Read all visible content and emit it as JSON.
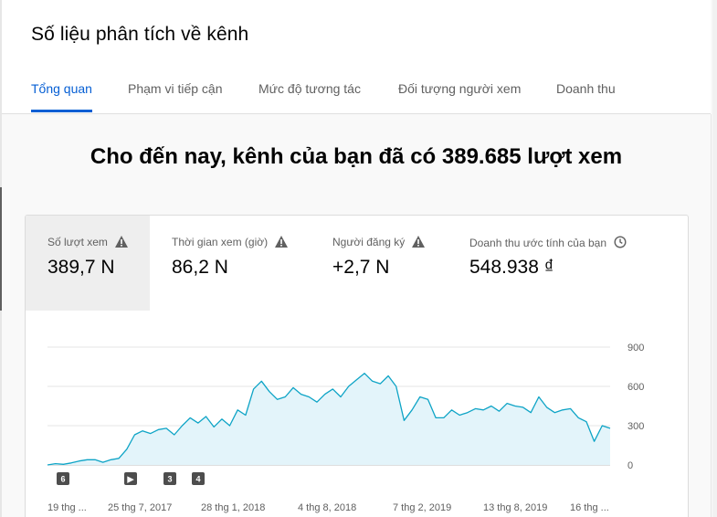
{
  "page": {
    "title": "Số liệu phân tích về kênh",
    "tabs": [
      {
        "label": "Tổng quan",
        "active": true
      },
      {
        "label": "Phạm vi tiếp cận",
        "active": false
      },
      {
        "label": "Mức độ tương tác",
        "active": false
      },
      {
        "label": "Đối tượng người xem",
        "active": false
      },
      {
        "label": "Doanh thu",
        "active": false
      }
    ],
    "headline": "Cho đến nay, kênh của bạn đã có 389.685 lượt xem"
  },
  "metrics": [
    {
      "label": "Số lượt xem",
      "value": "389,7 N",
      "icon": "warning-icon",
      "selected": true
    },
    {
      "label": "Thời gian xem (giờ)",
      "value": "86,2 N",
      "icon": "warning-icon",
      "selected": false
    },
    {
      "label": "Người đăng ký",
      "value": "+2,7 N",
      "icon": "warning-icon",
      "selected": false
    },
    {
      "label": "Doanh thu ước tính của bạn",
      "value": "548.938 ₫",
      "icon": "clock-icon",
      "selected": false
    }
  ],
  "colors": {
    "accent": "#065fd4",
    "line": "#0ea4c6",
    "area": "#e3f4fa",
    "grid": "#e5e5e5",
    "warning": "#606060"
  },
  "chart_data": {
    "type": "line",
    "ylim": [
      0,
      900
    ],
    "yticks": [
      "900",
      "600",
      "300",
      "0"
    ],
    "xticks": [
      "19 thg ...",
      "25 thg 7, 2017",
      "28 thg 1, 2018",
      "4 thg 8, 2018",
      "7 thg 2, 2019",
      "13 thg 8, 2019",
      "16 thg ..."
    ],
    "markers": [
      "6",
      "▶",
      "3",
      "4"
    ],
    "series": [
      {
        "values": [
          0,
          10,
          5,
          15,
          30,
          40,
          40,
          20,
          40,
          50,
          120,
          230,
          260,
          240,
          270,
          280,
          230,
          300,
          360,
          320,
          370,
          290,
          350,
          300,
          420,
          380,
          580,
          640,
          560,
          500,
          520,
          590,
          540,
          520,
          480,
          540,
          580,
          520,
          600,
          650,
          700,
          640,
          620,
          680,
          600,
          340,
          420,
          520,
          500,
          360,
          360,
          420,
          380,
          400,
          430,
          420,
          450,
          410,
          470,
          450,
          440,
          400,
          520,
          440,
          400,
          420,
          430,
          360,
          330,
          180,
          300,
          280
        ]
      }
    ]
  }
}
